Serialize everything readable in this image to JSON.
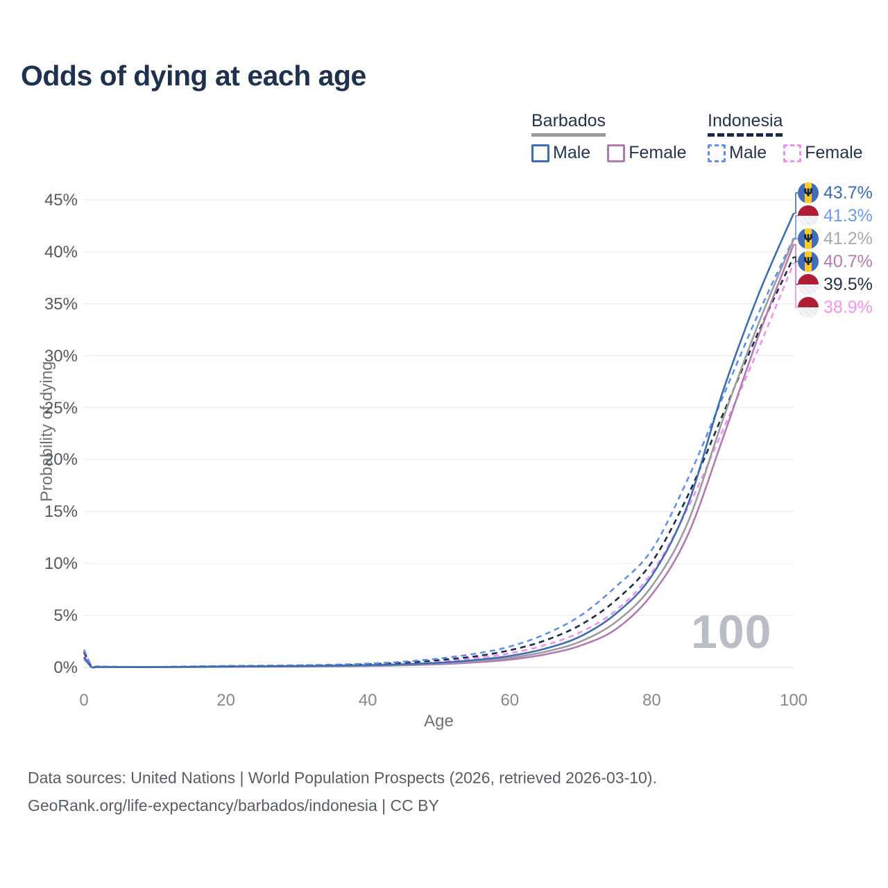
{
  "title": "Odds of dying at each age",
  "legend": {
    "groups": [
      {
        "country": "Barbados",
        "line_style": "solid",
        "line_color": "#9a9a9a",
        "items": [
          {
            "label": "Male",
            "color": "#3a6db3",
            "dash": "solid"
          },
          {
            "label": "Female",
            "color": "#b279b2",
            "dash": "solid"
          }
        ]
      },
      {
        "country": "Indonesia",
        "line_style": "dashed",
        "line_color": "#1c2b45",
        "items": [
          {
            "label": "Male",
            "color": "#5d8ff0",
            "dash": "dashed"
          },
          {
            "label": "Female",
            "color": "#f48df2",
            "dash": "dashed"
          }
        ]
      }
    ]
  },
  "watermark": "100",
  "footer": {
    "line1": "Data sources: United Nations | World Population Prospects (2026, retrieved 2026-03-10).",
    "line2": "GeoRank.org/life-expectancy/barbados/indonesia | CC BY"
  },
  "chart_data": {
    "type": "line",
    "title": "Odds of dying at each age",
    "xlabel": "Age",
    "ylabel": "Probability of dying",
    "xlim": [
      0,
      100
    ],
    "ylim": [
      0,
      45
    ],
    "x_ticks": [
      0,
      20,
      40,
      60,
      80,
      100
    ],
    "y_ticks": [
      0,
      5,
      10,
      15,
      20,
      25,
      30,
      35,
      40,
      45
    ],
    "y_tick_suffix": "%",
    "grid": true,
    "legend_position": "top-right",
    "x": [
      0,
      1,
      2,
      5,
      10,
      15,
      20,
      25,
      30,
      35,
      40,
      45,
      50,
      55,
      60,
      65,
      70,
      75,
      80,
      85,
      90,
      95,
      100
    ],
    "series": [
      {
        "name": "Barbados Male",
        "country": "Barbados",
        "sex": "Male",
        "flag": "barbados",
        "color": "#3a6db3",
        "dash": "solid",
        "end_label": "43.7%",
        "label_color": "#3a6db3",
        "values": [
          1.0,
          0.06,
          0.04,
          0.03,
          0.03,
          0.05,
          0.09,
          0.11,
          0.13,
          0.16,
          0.21,
          0.3,
          0.45,
          0.7,
          1.1,
          1.8,
          3.0,
          5.2,
          8.8,
          15.5,
          26.5,
          35.8,
          43.7
        ]
      },
      {
        "name": "Indonesia Male",
        "country": "Indonesia",
        "sex": "Male",
        "flag": "indonesia",
        "color": "#5d8ff0",
        "dash": "dashed",
        "end_label": "41.3%",
        "label_color": "#6b9cf3",
        "values": [
          1.7,
          0.15,
          0.09,
          0.06,
          0.05,
          0.09,
          0.14,
          0.17,
          0.2,
          0.26,
          0.36,
          0.55,
          0.85,
          1.3,
          2.0,
          3.2,
          5.0,
          7.8,
          11.3,
          18.0,
          26.0,
          34.0,
          41.3
        ]
      },
      {
        "name": "Barbados Combined",
        "country": "Barbados",
        "sex": "Combined",
        "flag": "barbados",
        "color": "#9c9ca0",
        "dash": "solid",
        "end_label": "41.2%",
        "label_color": "#a6aab2",
        "values": [
          0.9,
          0.055,
          0.035,
          0.028,
          0.028,
          0.045,
          0.07,
          0.09,
          0.11,
          0.13,
          0.17,
          0.25,
          0.38,
          0.58,
          0.92,
          1.5,
          2.5,
          4.4,
          7.8,
          13.8,
          23.8,
          33.0,
          41.2
        ]
      },
      {
        "name": "Barbados Female",
        "country": "Barbados",
        "sex": "Female",
        "flag": "barbados",
        "color": "#b279b2",
        "dash": "solid",
        "end_label": "40.7%",
        "label_color": "#b679b4",
        "values": [
          0.8,
          0.05,
          0.03,
          0.025,
          0.025,
          0.04,
          0.05,
          0.06,
          0.08,
          0.1,
          0.14,
          0.2,
          0.3,
          0.48,
          0.75,
          1.25,
          2.1,
          3.7,
          7.0,
          12.6,
          22.0,
          31.8,
          40.7
        ]
      },
      {
        "name": "Indonesia Combined",
        "country": "Indonesia",
        "sex": "Combined",
        "flag": "indonesia",
        "color": "#1c2b45",
        "dash": "dashed",
        "end_label": "39.5%",
        "label_color": "#20304d",
        "values": [
          1.5,
          0.13,
          0.08,
          0.05,
          0.045,
          0.075,
          0.11,
          0.13,
          0.16,
          0.21,
          0.3,
          0.45,
          0.7,
          1.05,
          1.65,
          2.6,
          4.1,
          6.5,
          10.1,
          16.4,
          24.3,
          32.2,
          39.5
        ]
      },
      {
        "name": "Indonesia Female",
        "country": "Indonesia",
        "sex": "Female",
        "flag": "indonesia",
        "color": "#f48df2",
        "dash": "dashed",
        "end_label": "38.9%",
        "label_color": "#f791ef",
        "values": [
          1.35,
          0.11,
          0.07,
          0.045,
          0.04,
          0.06,
          0.08,
          0.1,
          0.13,
          0.17,
          0.25,
          0.38,
          0.58,
          0.88,
          1.35,
          2.15,
          3.4,
          5.5,
          9.1,
          15.2,
          22.8,
          30.6,
          38.9
        ]
      }
    ]
  }
}
